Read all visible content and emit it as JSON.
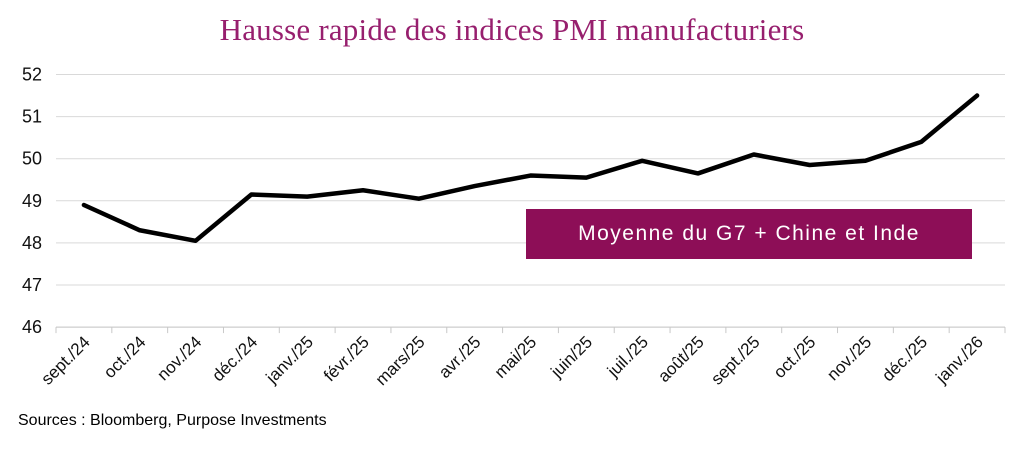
{
  "title": "Hausse rapide des indices PMI manufacturiers",
  "source": "Sources : Bloomberg, Purpose Investments",
  "annotation": {
    "label": "Moyenne du G7 + Chine et Inde"
  },
  "colors": {
    "title": "#971F6E",
    "annotation_bg": "#8D0E57",
    "annotation_text": "#FFFFFF",
    "line": "#000000",
    "grid": "#D9D9D9",
    "axis": "#C8C8C8",
    "axis_text": "#111111"
  },
  "chart_data": {
    "type": "line",
    "title": "Hausse rapide des indices PMI manufacturiers",
    "xlabel": "",
    "ylabel": "",
    "categories": [
      "sept./24",
      "oct./24",
      "nov./24",
      "déc./24",
      "janv./25",
      "févr./25",
      "mars/25",
      "avr./25",
      "mai/25",
      "juin/25",
      "juil./25",
      "août/25",
      "sept./25",
      "oct./25",
      "nov./25",
      "déc./25",
      "janv./26"
    ],
    "series": [
      {
        "name": "Moyenne du G7 + Chine et Inde",
        "values": [
          48.9,
          48.3,
          48.05,
          49.15,
          49.1,
          49.25,
          49.05,
          49.35,
          49.6,
          49.55,
          49.95,
          49.65,
          50.1,
          49.85,
          49.95,
          50.4,
          51.5
        ]
      }
    ],
    "ylim": [
      46,
      52
    ],
    "yticks": [
      46,
      47,
      48,
      49,
      50,
      51,
      52
    ],
    "grid": true,
    "legend_position": "in-plot-box-right"
  }
}
